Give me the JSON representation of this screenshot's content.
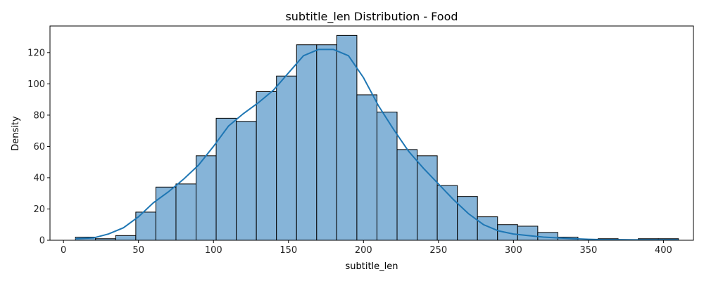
{
  "chart_data": {
    "type": "bar",
    "subtype": "histogram",
    "title": "subtitle_len Distribution - Food",
    "xlabel": "subtitle_len",
    "ylabel": "Density",
    "xlim": [
      -9,
      420
    ],
    "ylim": [
      0,
      137
    ],
    "xticks": [
      0,
      50,
      100,
      150,
      200,
      250,
      300,
      350,
      400
    ],
    "yticks": [
      0,
      20,
      40,
      60,
      80,
      100,
      120
    ],
    "grid": false,
    "colors": {
      "bar_fill": "#86b4d8",
      "bar_edge": "#000000",
      "kde_line": "#1f77b4"
    },
    "bin_edges": [
      8,
      21.4,
      34.8,
      48.2,
      61.6,
      75.0,
      88.4,
      101.8,
      115.2,
      128.6,
      142.0,
      155.4,
      168.8,
      182.2,
      195.6,
      209.0,
      222.4,
      235.8,
      249.2,
      262.6,
      276.0,
      289.4,
      302.8,
      316.2,
      329.6,
      343.0,
      356.4,
      369.8,
      383.2,
      396.6,
      410
    ],
    "values": [
      2,
      1,
      3,
      18,
      34,
      36,
      54,
      78,
      76,
      95,
      105,
      125,
      125,
      131,
      93,
      82,
      58,
      54,
      35,
      28,
      15,
      10,
      9,
      5,
      2,
      0,
      1,
      0,
      1,
      1
    ],
    "kde": {
      "x": [
        8,
        20,
        30,
        40,
        50,
        60,
        70,
        80,
        90,
        100,
        110,
        120,
        130,
        140,
        150,
        160,
        170,
        180,
        190,
        200,
        210,
        220,
        230,
        240,
        250,
        260,
        270,
        280,
        290,
        300,
        310,
        320,
        330,
        340,
        350,
        360,
        370,
        380,
        390,
        400,
        410
      ],
      "y": [
        1,
        1.5,
        4,
        8,
        15,
        24,
        31,
        39,
        48,
        60,
        73,
        81,
        88,
        96,
        107,
        118,
        122,
        122,
        118,
        104,
        86,
        71,
        57,
        46,
        36,
        26,
        17,
        10,
        6,
        4,
        3,
        2,
        1.5,
        1,
        0.6,
        0.4,
        0.4,
        0.3,
        0.3,
        0.3,
        0.3
      ]
    }
  }
}
